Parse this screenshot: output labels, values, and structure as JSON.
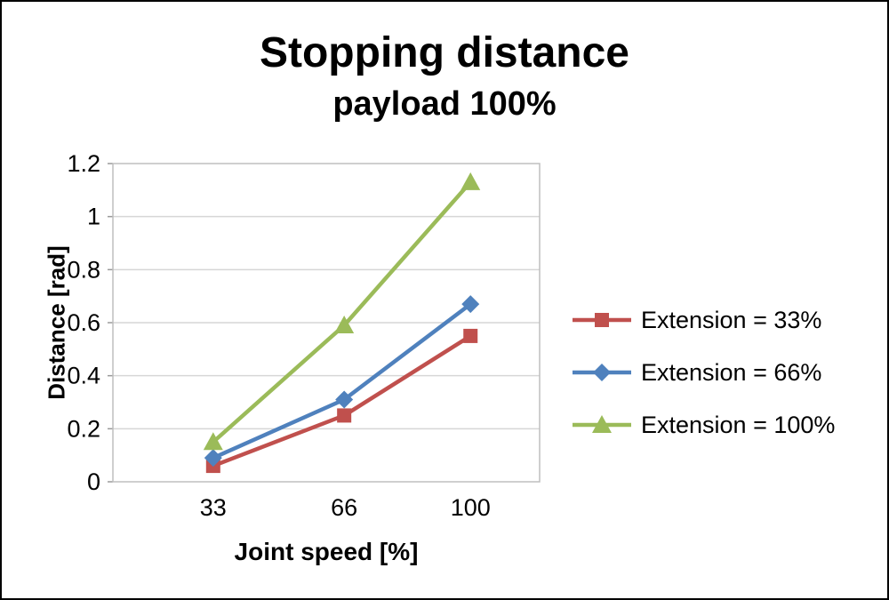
{
  "chart_data": {
    "type": "line",
    "title": "Stopping distance",
    "subtitle": "payload 100%",
    "xlabel": "Joint speed [%]",
    "ylabel": "Distance [rad]",
    "categories": [
      "33",
      "66",
      "100"
    ],
    "ylim": [
      0,
      1.2
    ],
    "ytick_step": 0.2,
    "ytick_labels": [
      "0",
      "0.2",
      "0.4",
      "0.6",
      "0.8",
      "1",
      "1.2"
    ],
    "grid": true,
    "legend_position": "right",
    "series": [
      {
        "name": "Extension = 33%",
        "marker": "square",
        "color": "#C0504D",
        "values": [
          0.06,
          0.25,
          0.55
        ]
      },
      {
        "name": "Extension = 66%",
        "marker": "diamond",
        "color": "#4F81BD",
        "values": [
          0.09,
          0.31,
          0.67
        ]
      },
      {
        "name": "Extension = 100%",
        "marker": "triangle",
        "color": "#9BBB59",
        "values": [
          0.15,
          0.59,
          1.13
        ]
      }
    ],
    "plot_border_color": "#bfbfbf",
    "gridline_color": "#d6d6d6"
  }
}
